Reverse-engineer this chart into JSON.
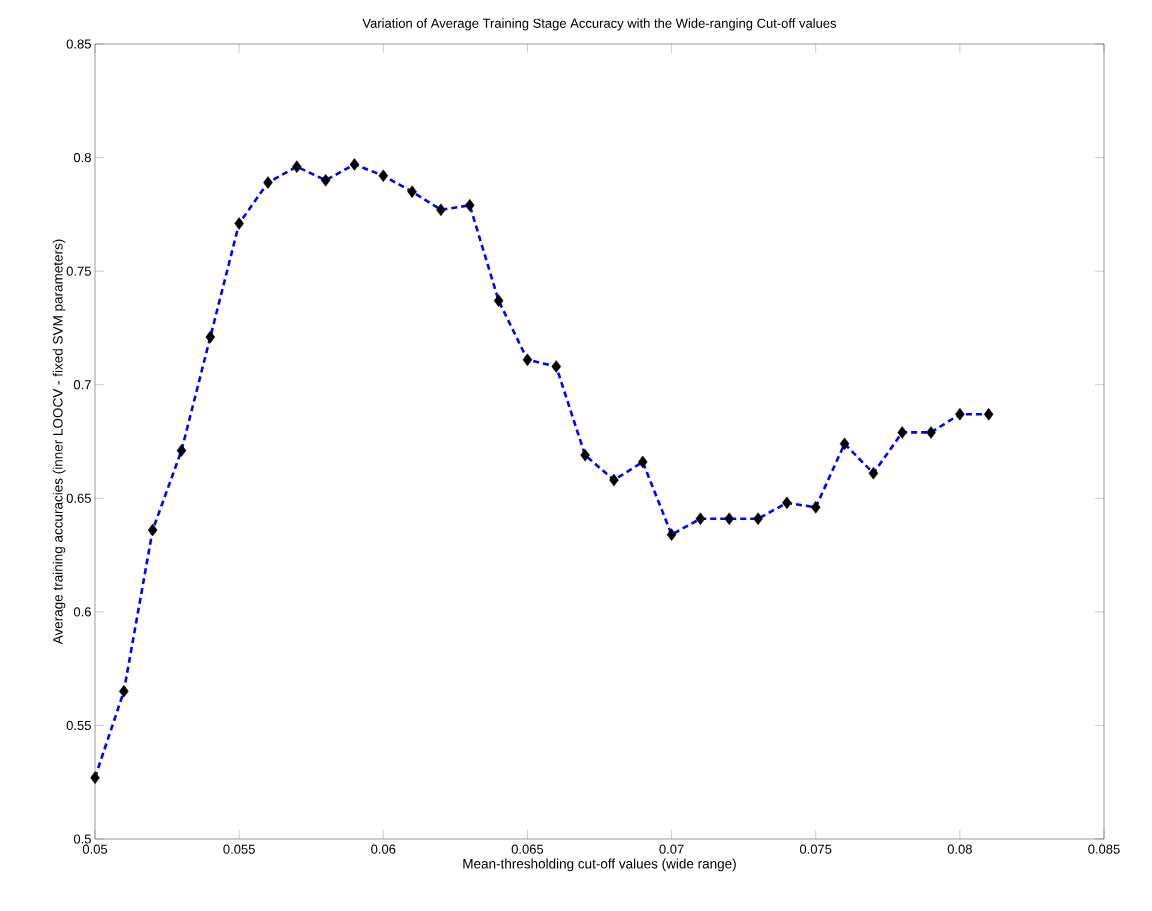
{
  "chart_data": {
    "type": "line",
    "title": "Variation of Average Training Stage Accuracy with the Wide-ranging Cut-off values",
    "xlabel": "Mean-thresholding cut-off values (wide range)",
    "ylabel": "Average training accuracies (inner LOOCV - fixed SVM parameters)",
    "x": [
      0.05,
      0.051,
      0.052,
      0.053,
      0.054,
      0.055,
      0.056,
      0.057,
      0.058,
      0.059,
      0.06,
      0.061,
      0.062,
      0.063,
      0.064,
      0.065,
      0.066,
      0.067,
      0.068,
      0.069,
      0.07,
      0.071,
      0.072,
      0.073,
      0.074,
      0.075,
      0.076,
      0.077,
      0.078,
      0.079,
      0.08,
      0.081
    ],
    "series": [
      {
        "color": "#0000ff",
        "values": [
          0.527,
          0.565,
          0.636,
          0.671,
          0.721,
          0.771,
          0.789,
          0.796,
          0.79,
          0.797,
          0.792,
          0.785,
          0.777,
          0.779,
          0.737,
          0.711,
          0.708,
          0.669,
          0.658,
          0.666,
          0.634,
          0.641,
          0.641,
          0.641,
          0.648,
          0.646,
          0.674,
          0.661,
          0.679,
          0.679,
          0.687,
          0.687
        ]
      }
    ],
    "marker": "diamond",
    "line_style": "dashed",
    "xlim": [
      0.05,
      0.085
    ],
    "ylim": [
      0.5,
      0.85
    ],
    "xticks": [
      0.05,
      0.055,
      0.06,
      0.065,
      0.07,
      0.075,
      0.08,
      0.085
    ],
    "yticks": [
      0.5,
      0.55,
      0.6,
      0.65,
      0.7,
      0.75,
      0.8,
      0.85
    ]
  }
}
